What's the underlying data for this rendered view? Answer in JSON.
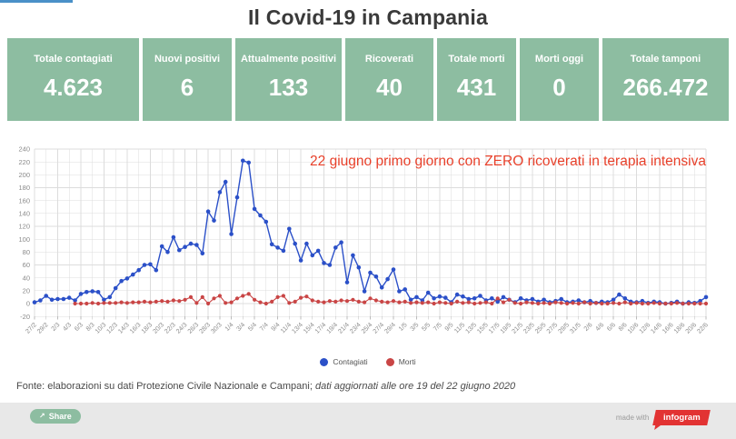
{
  "page": {
    "title": "Il Covid-19 in Campania"
  },
  "stats": [
    {
      "label": "Totale contagiati",
      "value": "4.623"
    },
    {
      "label": "Nuovi positivi",
      "value": "6"
    },
    {
      "label": "Attualmente positivi",
      "value": "133"
    },
    {
      "label": "Ricoverati",
      "value": "40"
    },
    {
      "label": "Totale morti",
      "value": "431"
    },
    {
      "label": "Morti oggi",
      "value": "0"
    },
    {
      "label": "Totale tamponi",
      "value": "266.472"
    }
  ],
  "chart_data": {
    "type": "line",
    "annotation": "22 giugno primo giorno con ZERO ricoverati in terapia intensiva",
    "grid": true,
    "legend_position": "bottom",
    "ylim": [
      -20,
      240
    ],
    "y_tick_labels": [
      240,
      220,
      200,
      180,
      160,
      140,
      120,
      100,
      80,
      60,
      40,
      20,
      0,
      -20
    ],
    "x_tick_labels": [
      "27/2",
      "29/2",
      "2/3",
      "4/3",
      "6/3",
      "8/3",
      "10/3",
      "12/3",
      "14/3",
      "16/3",
      "18/3",
      "20/3",
      "22/3",
      "24/3",
      "26/3",
      "28/3",
      "30/3",
      "1/4",
      "3/4",
      "5/4",
      "7/4",
      "9/4",
      "11/4",
      "13/4",
      "15/4",
      "17/4",
      "19/4",
      "21/4",
      "23/4",
      "25/4",
      "27/4",
      "29/4",
      "1/5",
      "3/5",
      "5/5",
      "7/5",
      "9/5",
      "11/5",
      "13/5",
      "15/5",
      "17/5",
      "19/5",
      "21/5",
      "23/5",
      "25/5",
      "27/5",
      "29/5",
      "31/5",
      "2/6",
      "4/6",
      "6/6",
      "8/6",
      "10/6",
      "12/6",
      "14/6",
      "16/6",
      "18/6",
      "20/6",
      "22/6"
    ],
    "x_start_date": "27/2",
    "x_end_date": "22/6",
    "points_per_tick": 2,
    "series": [
      {
        "name": "Contagiati",
        "color": "#2b50c8",
        "values": [
          2,
          5,
          12,
          6,
          7,
          7,
          9,
          5,
          15,
          18,
          19,
          18,
          6,
          10,
          24,
          35,
          39,
          45,
          52,
          60,
          61,
          52,
          89,
          80,
          103,
          83,
          88,
          93,
          91,
          78,
          143,
          129,
          173,
          189,
          108,
          165,
          222,
          219,
          147,
          137,
          127,
          92,
          87,
          82,
          116,
          93,
          67,
          93,
          75,
          82,
          63,
          60,
          87,
          95,
          33,
          75,
          56,
          19,
          48,
          42,
          25,
          38,
          53,
          19,
          22,
          6,
          10,
          5,
          17,
          8,
          11,
          9,
          2,
          14,
          11,
          7,
          8,
          12,
          5,
          8,
          3,
          10,
          6,
          2,
          8,
          5,
          7,
          3,
          6,
          2,
          4,
          7,
          2,
          3,
          5,
          2,
          4,
          1,
          3,
          2,
          6,
          14,
          8,
          3,
          2,
          4,
          1,
          3,
          2,
          0,
          1,
          3,
          0,
          2,
          1,
          4,
          10
        ]
      },
      {
        "name": "Morti",
        "color": "#c94545",
        "values": [
          null,
          null,
          null,
          null,
          null,
          null,
          null,
          0,
          0,
          0,
          1,
          0,
          1,
          1,
          1,
          2,
          1,
          2,
          2,
          3,
          2,
          3,
          4,
          3,
          5,
          4,
          6,
          10,
          1,
          10,
          0,
          8,
          12,
          1,
          2,
          8,
          12,
          15,
          6,
          2,
          0,
          3,
          10,
          12,
          1,
          3,
          9,
          11,
          5,
          3,
          2,
          4,
          3,
          5,
          4,
          6,
          3,
          2,
          8,
          5,
          3,
          2,
          4,
          2,
          3,
          1,
          2,
          1,
          2,
          0,
          2,
          1,
          0,
          3,
          1,
          2,
          0,
          1,
          2,
          0,
          8,
          2,
          6,
          1,
          0,
          2,
          1,
          0,
          1,
          0,
          2,
          1,
          0,
          1,
          0,
          2,
          0,
          1,
          0,
          0,
          1,
          0,
          2,
          0,
          1,
          0,
          0,
          1,
          0,
          0,
          0,
          1,
          0,
          0,
          0,
          0,
          0
        ]
      }
    ]
  },
  "footer": {
    "source_normal": "Fonte: elaborazioni su dati Protezione Civile Nazionale e Campani; ",
    "source_italic": "dati aggiornati alle ore 19 del 22 giugno 2020"
  },
  "share": {
    "label": "Share",
    "icon": "share-arrow"
  },
  "credit": {
    "made_with": "made with",
    "brand": "infogram"
  },
  "colors": {
    "stat_green": "#8dbda1",
    "accent_blue": "#4a90c8",
    "series_blue": "#2b50c8",
    "series_red": "#c94545",
    "annotation_red": "#e8402a",
    "infogram_red": "#e23333",
    "bottom_bar_gray": "#e8e8e8"
  }
}
